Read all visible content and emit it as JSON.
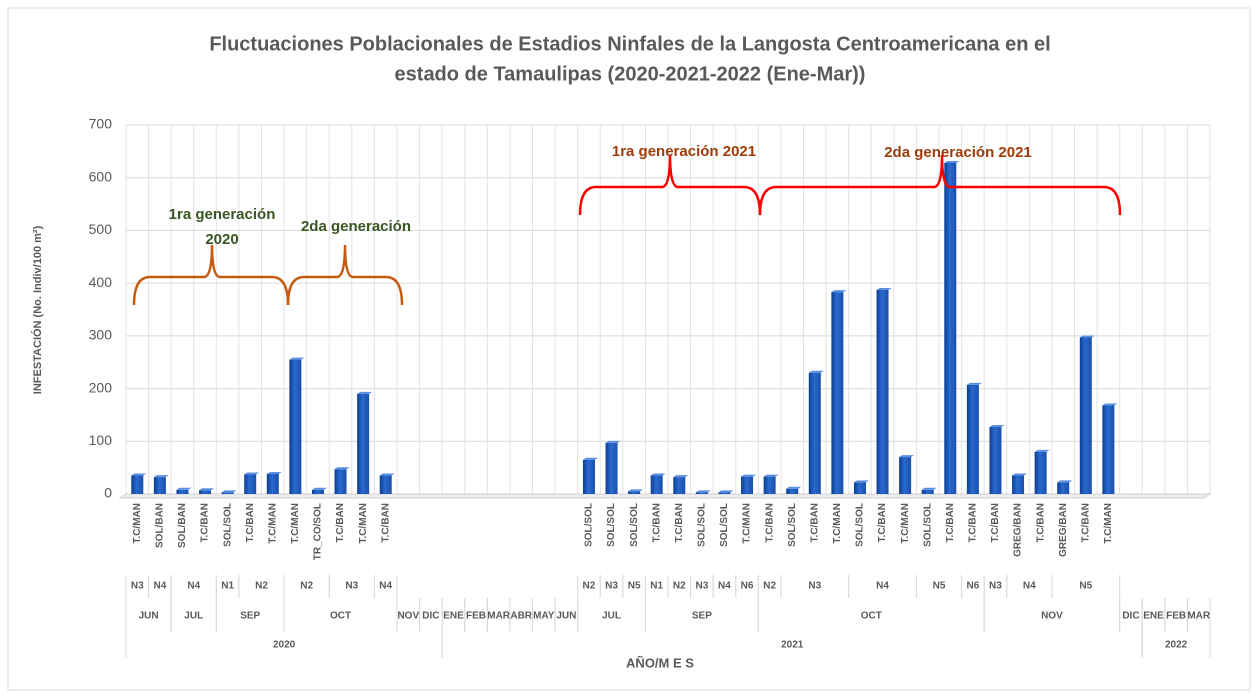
{
  "chart_data": {
    "type": "bar",
    "title": [
      "Fluctuaciones  Poblacionales de Estadios Ninfales de la Langosta Centroamericana en el",
      "estado de Tamaulipas  (2020-2021-2022 (Ene-Mar))"
    ],
    "y_label": "INFESTACIÓN (No. Indiv/100 m²)",
    "x_label": "AÑO/M E S",
    "color": "#1f5fbf",
    "ylim": [
      0,
      700
    ],
    "yticks": [
      0,
      100,
      200,
      300,
      400,
      500,
      600,
      700
    ],
    "grid": true,
    "categories": [
      "T.C/MAN",
      "SOL/BAN",
      "SOL/BAN",
      "T.C/BAN",
      "SOL/SOL",
      "T.C/BAN",
      "T.C/MAN",
      "T.C/MAN",
      "TR_CO/SOL",
      "T.C/BAN",
      "T.C/MAN",
      "T.C/BAN",
      null,
      null,
      null,
      null,
      null,
      null,
      null,
      null,
      "SOL/SOL",
      "SOL/SOL",
      "SOL/SOL",
      "T.C/BAN",
      "T.C/BAN",
      "SOL/SOL",
      "SOL/SOL",
      "T.C/MAN",
      "T.C/BAN",
      "SOL/SOL",
      "T.C/BAN",
      "T.C/MAN",
      "SOL/SOL",
      "T.C/BAN",
      "T.C/MAN",
      "SOL/SOL",
      "T.C/BAN",
      "T.C/BAN",
      "T.C/BAN",
      "GREG/BAN",
      "T.C/BAN",
      "GREG/BAN",
      "T.C/BAN",
      "T.C/MAN",
      null,
      null,
      null,
      null
    ],
    "stages": [
      "N3",
      "N4",
      "N4",
      "N4",
      "N1",
      "N2",
      "N2",
      "N2",
      "N2",
      "N3",
      "N3",
      "N4",
      null,
      null,
      null,
      null,
      null,
      null,
      null,
      null,
      "N2",
      "N3",
      "N5",
      "N1",
      "N2",
      "N3",
      "N4",
      "N6",
      "N2",
      "N3",
      "N3",
      "N3",
      "N4",
      "N4",
      "N4",
      "N5",
      "N5",
      "N6",
      "N3",
      "N4",
      "N4",
      "N5",
      "N5",
      "N5",
      null,
      null,
      null,
      null
    ],
    "months": [
      "JUN",
      "JUN",
      "JUL",
      "JUL",
      "SEP",
      "SEP",
      "SEP",
      "OCT",
      "OCT",
      "OCT",
      "OCT",
      "OCT",
      "NOV",
      "DIC",
      "ENE",
      "FEB",
      "MAR",
      "ABR",
      "MAY",
      "JUN",
      "JUL",
      "JUL",
      "JUL",
      "SEP",
      "SEP",
      "SEP",
      "SEP",
      "SEP",
      "OCT",
      "OCT",
      "OCT",
      "OCT",
      "OCT",
      "OCT",
      "OCT",
      "OCT",
      "OCT",
      "OCT",
      "NOV",
      "NOV",
      "NOV",
      "NOV",
      "NOV",
      "NOV",
      "DIC",
      "ENE",
      "FEB",
      "MAR"
    ],
    "years": [
      "2020",
      "2020",
      "2020",
      "2020",
      "2020",
      "2020",
      "2020",
      "2020",
      "2020",
      "2020",
      "2020",
      "2020",
      "2020",
      "2020",
      "2021",
      "2021",
      "2021",
      "2021",
      "2021",
      "2021",
      "2021",
      "2021",
      "2021",
      "2021",
      "2021",
      "2021",
      "2021",
      "2021",
      "2021",
      "2021",
      "2021",
      "2021",
      "2021",
      "2021",
      "2021",
      "2021",
      "2021",
      "2021",
      "2021",
      "2021",
      "2021",
      "2021",
      "2021",
      "2021",
      "2021",
      "2022",
      "2022",
      "2022"
    ],
    "values": [
      35,
      32,
      8,
      7,
      3,
      37,
      38,
      255,
      8,
      47,
      190,
      35,
      null,
      null,
      null,
      null,
      null,
      null,
      null,
      null,
      65,
      97,
      5,
      35,
      32,
      3,
      3,
      33,
      33,
      10,
      230,
      383,
      22,
      387,
      70,
      8,
      628,
      207,
      127,
      35,
      80,
      22,
      297,
      168,
      null,
      null,
      null,
      null
    ],
    "annotations": [
      {
        "text": [
          "1ra generación",
          "2020"
        ],
        "color": "#375623",
        "bracket_color": "#c55a11"
      },
      {
        "text": [
          "2da generación"
        ],
        "color": "#375623",
        "bracket_color": "#c55a11"
      },
      {
        "text": [
          "1ra generación 2021"
        ],
        "color": "#9c3c0a",
        "bracket_color": "#ff0000"
      },
      {
        "text": [
          "2da generación 2021"
        ],
        "color": "#9c3c0a",
        "bracket_color": "#ff0000"
      }
    ]
  }
}
